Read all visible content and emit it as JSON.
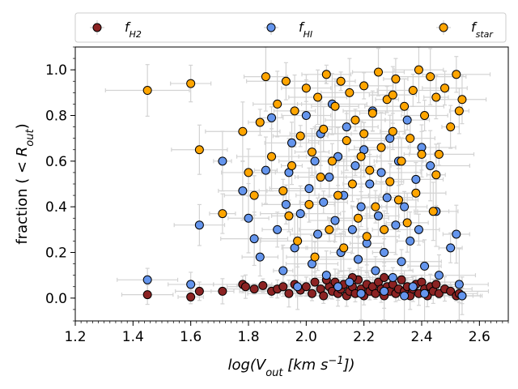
{
  "chart_data": {
    "type": "scatter",
    "title": "",
    "xlabel": "log(V_out [km s^-1])",
    "ylabel": "fraction (< R_out)",
    "xlim": [
      1.2,
      2.7
    ],
    "ylim": [
      -0.1,
      1.1
    ],
    "xticks": [
      1.2,
      1.4,
      1.6,
      1.8,
      2.0,
      2.2,
      2.4,
      2.6
    ],
    "yticks": [
      0.0,
      0.2,
      0.4,
      0.6,
      0.8,
      1.0
    ],
    "xtick_labels": [
      "1.2",
      "1.4",
      "1.6",
      "1.8",
      "2.0",
      "2.2",
      "2.4",
      "2.6"
    ],
    "ytick_labels": [
      "0.0",
      "0.2",
      "0.4",
      "0.6",
      "0.8",
      "1.0"
    ],
    "grid": false,
    "legend_position": "top, outside plot",
    "error_bar_color": "#d3d3d3",
    "series": [
      {
        "name": "f_H2",
        "legend_base": "f",
        "legend_sub": "H2",
        "color": "#8b2323",
        "points": [
          [
            1.45,
            0.015
          ],
          [
            1.6,
            0.005
          ],
          [
            1.63,
            0.03
          ],
          [
            1.71,
            0.03
          ],
          [
            1.78,
            0.06
          ],
          [
            1.79,
            0.05
          ],
          [
            1.82,
            0.04
          ],
          [
            1.85,
            0.055
          ],
          [
            1.88,
            0.03
          ],
          [
            1.9,
            0.04
          ],
          [
            1.92,
            0.05
          ],
          [
            1.94,
            0.02
          ],
          [
            1.96,
            0.06
          ],
          [
            1.98,
            0.035
          ],
          [
            2.0,
            0.05
          ],
          [
            2.02,
            0.02
          ],
          [
            2.03,
            0.07
          ],
          [
            2.05,
            0.04
          ],
          [
            2.06,
            0.01
          ],
          [
            2.08,
            0.05
          ],
          [
            2.09,
            0.03
          ],
          [
            2.1,
            0.07
          ],
          [
            2.11,
            0.02
          ],
          [
            2.12,
            0.04
          ],
          [
            2.13,
            0.06
          ],
          [
            2.14,
            0.01
          ],
          [
            2.15,
            0.03
          ],
          [
            2.16,
            0.05
          ],
          [
            2.17,
            0.02
          ],
          [
            2.18,
            0.08
          ],
          [
            2.19,
            0.04
          ],
          [
            2.2,
            0.01
          ],
          [
            2.21,
            0.06
          ],
          [
            2.22,
            0.03
          ],
          [
            2.23,
            0.05
          ],
          [
            2.24,
            0.02
          ],
          [
            2.25,
            0.07
          ],
          [
            2.26,
            0.04
          ],
          [
            2.27,
            0.01
          ],
          [
            2.28,
            0.05
          ],
          [
            2.29,
            0.03
          ],
          [
            2.3,
            0.06
          ],
          [
            2.31,
            0.02
          ],
          [
            2.32,
            0.04
          ],
          [
            2.33,
            0.08
          ],
          [
            2.34,
            0.03
          ],
          [
            2.35,
            0.05
          ],
          [
            2.36,
            0.01
          ],
          [
            2.37,
            0.04
          ],
          [
            2.38,
            0.06
          ],
          [
            2.39,
            0.02
          ],
          [
            2.4,
            0.07
          ],
          [
            2.41,
            0.04
          ],
          [
            2.42,
            0.01
          ],
          [
            2.43,
            0.05
          ],
          [
            2.44,
            0.03
          ],
          [
            2.45,
            0.06
          ],
          [
            2.46,
            0.02
          ],
          [
            2.48,
            0.04
          ],
          [
            2.5,
            0.03
          ],
          [
            2.52,
            0.01
          ],
          [
            2.53,
            0.02
          ],
          [
            2.54,
            0.01
          ],
          [
            2.07,
            0.08
          ],
          [
            2.16,
            0.09
          ],
          [
            2.27,
            0.09
          ]
        ]
      },
      {
        "name": "f_HI",
        "legend_base": "f",
        "legend_sub": "HI",
        "color": "#6495ed",
        "points": [
          [
            1.45,
            0.08
          ],
          [
            1.6,
            0.06
          ],
          [
            1.63,
            0.32
          ],
          [
            1.71,
            0.6
          ],
          [
            1.78,
            0.47
          ],
          [
            1.8,
            0.35
          ],
          [
            1.82,
            0.26
          ],
          [
            1.84,
            0.18
          ],
          [
            1.86,
            0.56
          ],
          [
            1.88,
            0.79
          ],
          [
            1.9,
            0.3
          ],
          [
            1.92,
            0.12
          ],
          [
            1.93,
            0.41
          ],
          [
            1.94,
            0.55
          ],
          [
            1.95,
            0.68
          ],
          [
            1.96,
            0.22
          ],
          [
            1.97,
            0.05
          ],
          [
            1.98,
            0.37
          ],
          [
            2.0,
            0.8
          ],
          [
            2.01,
            0.48
          ],
          [
            2.02,
            0.15
          ],
          [
            2.03,
            0.6
          ],
          [
            2.04,
            0.28
          ],
          [
            2.05,
            0.72
          ],
          [
            2.06,
            0.42
          ],
          [
            2.07,
            0.1
          ],
          [
            2.08,
            0.53
          ],
          [
            2.09,
            0.85
          ],
          [
            2.1,
            0.34
          ],
          [
            2.11,
            0.62
          ],
          [
            2.12,
            0.2
          ],
          [
            2.13,
            0.45
          ],
          [
            2.14,
            0.75
          ],
          [
            2.15,
            0.07
          ],
          [
            2.16,
            0.3
          ],
          [
            2.17,
            0.58
          ],
          [
            2.18,
            0.17
          ],
          [
            2.19,
            0.4
          ],
          [
            2.2,
            0.65
          ],
          [
            2.21,
            0.24
          ],
          [
            2.22,
            0.5
          ],
          [
            2.23,
            0.82
          ],
          [
            2.24,
            0.12
          ],
          [
            2.25,
            0.36
          ],
          [
            2.26,
            0.55
          ],
          [
            2.27,
            0.2
          ],
          [
            2.28,
            0.44
          ],
          [
            2.29,
            0.7
          ],
          [
            2.3,
            0.09
          ],
          [
            2.31,
            0.32
          ],
          [
            2.32,
            0.6
          ],
          [
            2.33,
            0.16
          ],
          [
            2.34,
            0.4
          ],
          [
            2.35,
            0.78
          ],
          [
            2.36,
            0.25
          ],
          [
            2.37,
            0.05
          ],
          [
            2.38,
            0.52
          ],
          [
            2.39,
            0.3
          ],
          [
            2.4,
            0.66
          ],
          [
            2.41,
            0.14
          ],
          [
            2.43,
            0.58
          ],
          [
            2.45,
            0.38
          ],
          [
            2.46,
            0.1
          ],
          [
            2.5,
            0.22
          ],
          [
            2.52,
            0.28
          ],
          [
            2.53,
            0.06
          ],
          [
            2.54,
            0.01
          ],
          [
            2.11,
            0.05
          ],
          [
            2.19,
            0.02
          ],
          [
            2.27,
            0.03
          ],
          [
            2.34,
            0.01
          ],
          [
            2.41,
            0.02
          ]
        ]
      },
      {
        "name": "f_star",
        "legend_base": "f",
        "legend_sub": "star",
        "color": "#ffa500",
        "points": [
          [
            1.45,
            0.91
          ],
          [
            1.6,
            0.94
          ],
          [
            1.63,
            0.65
          ],
          [
            1.71,
            0.37
          ],
          [
            1.78,
            0.73
          ],
          [
            1.8,
            0.55
          ],
          [
            1.82,
            0.45
          ],
          [
            1.84,
            0.77
          ],
          [
            1.86,
            0.97
          ],
          [
            1.88,
            0.62
          ],
          [
            1.9,
            0.85
          ],
          [
            1.92,
            0.47
          ],
          [
            1.93,
            0.95
          ],
          [
            1.94,
            0.36
          ],
          [
            1.95,
            0.58
          ],
          [
            1.96,
            0.82
          ],
          [
            1.97,
            0.25
          ],
          [
            1.98,
            0.71
          ],
          [
            2.0,
            0.92
          ],
          [
            2.01,
            0.41
          ],
          [
            2.02,
            0.64
          ],
          [
            2.03,
            0.18
          ],
          [
            2.04,
            0.88
          ],
          [
            2.05,
            0.53
          ],
          [
            2.06,
            0.74
          ],
          [
            2.07,
            0.98
          ],
          [
            2.08,
            0.3
          ],
          [
            2.09,
            0.6
          ],
          [
            2.1,
            0.84
          ],
          [
            2.11,
            0.45
          ],
          [
            2.12,
            0.95
          ],
          [
            2.13,
            0.22
          ],
          [
            2.14,
            0.69
          ],
          [
            2.15,
            0.9
          ],
          [
            2.16,
            0.5
          ],
          [
            2.17,
            0.78
          ],
          [
            2.18,
            0.35
          ],
          [
            2.19,
            0.62
          ],
          [
            2.2,
            0.93
          ],
          [
            2.21,
            0.27
          ],
          [
            2.22,
            0.56
          ],
          [
            2.23,
            0.81
          ],
          [
            2.24,
            0.4
          ],
          [
            2.25,
            0.99
          ],
          [
            2.26,
            0.66
          ],
          [
            2.27,
            0.3
          ],
          [
            2.28,
            0.87
          ],
          [
            2.29,
            0.51
          ],
          [
            2.3,
            0.73
          ],
          [
            2.31,
            0.96
          ],
          [
            2.32,
            0.43
          ],
          [
            2.33,
            0.6
          ],
          [
            2.34,
            0.84
          ],
          [
            2.35,
            0.33
          ],
          [
            2.36,
            0.7
          ],
          [
            2.37,
            0.91
          ],
          [
            2.38,
            0.46
          ],
          [
            2.39,
            1.0
          ],
          [
            2.4,
            0.63
          ],
          [
            2.41,
            0.8
          ],
          [
            2.43,
            0.97
          ],
          [
            2.44,
            0.38
          ],
          [
            2.45,
            0.88
          ],
          [
            2.46,
            0.63
          ],
          [
            2.48,
            0.92
          ],
          [
            2.5,
            0.75
          ],
          [
            2.52,
            0.98
          ],
          [
            2.53,
            0.82
          ],
          [
            2.54,
            0.87
          ],
          [
            2.45,
            0.54
          ],
          [
            2.3,
            0.89
          ],
          [
            2.2,
            0.72
          ]
        ]
      }
    ]
  }
}
